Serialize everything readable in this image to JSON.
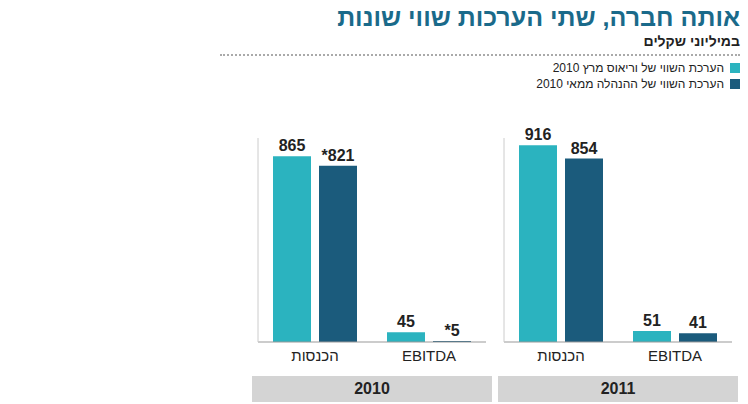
{
  "title": "אותה חברה, שתי הערכות שווי שונות",
  "subtitle": "במיליוני שקלים",
  "chart_data": [
    {
      "type": "bar",
      "title": "2010",
      "categories": [
        "הכנסות",
        "EBITDA"
      ],
      "series": [
        {
          "name": "הערכת השווי של וריאוס מרץ 2010",
          "color": "#2bb3bf",
          "values": [
            865,
            45
          ]
        },
        {
          "name": "הערכת השווי של ההנהלה ממאי 2010",
          "color": "#1b5b7c",
          "values": [
            821,
            5
          ],
          "value_labels": [
            "*821",
            "*5"
          ]
        }
      ],
      "ylim": [
        0,
        950
      ],
      "tick_labels": "x",
      "data_labels": true,
      "legend": "top-right"
    },
    {
      "type": "bar",
      "title": "2011",
      "categories": [
        "הכנסות",
        "EBITDA"
      ],
      "series": [
        {
          "name": "הערכת השווי של וריאוס מרץ 2010",
          "color": "#2bb3bf",
          "values": [
            916,
            51
          ]
        },
        {
          "name": "הערכת השווי של ההנהלה ממאי 2010",
          "color": "#1b5b7c",
          "values": [
            854,
            41
          ]
        }
      ],
      "ylim": [
        0,
        950
      ],
      "tick_labels": "x",
      "data_labels": true
    }
  ]
}
